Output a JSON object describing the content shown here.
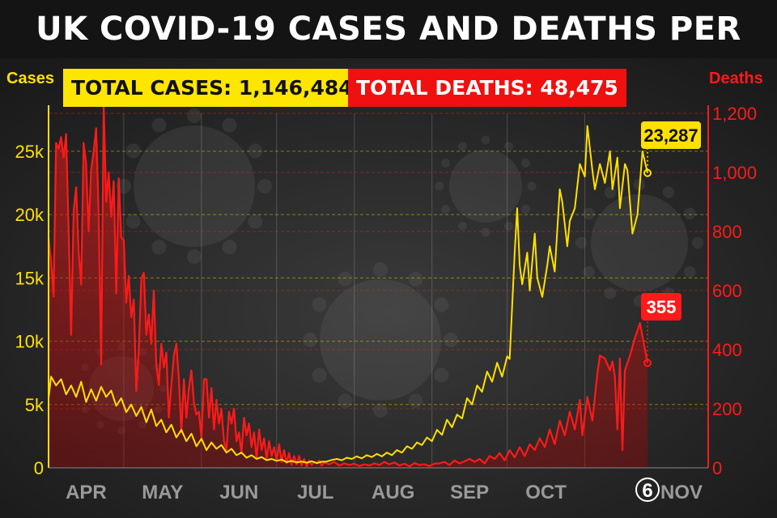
{
  "title": "UK COVID-19 CASES AND DEATHS PER DAY",
  "badges": {
    "cases": "TOTAL CASES: 1,146,484",
    "deaths": "TOTAL DEATHS: 48,475"
  },
  "colors": {
    "cases": "#ffe000",
    "deaths": "#ff1a1a",
    "background": "#1c1c1c",
    "title_bg": "#141414"
  },
  "chart_data": {
    "type": "line",
    "title": "UK COVID-19 CASES AND DEATHS PER DAY",
    "x_ticks": [
      "APR",
      "MAY",
      "JUN",
      "JUL",
      "AUG",
      "SEP",
      "OCT",
      "6 NOV"
    ],
    "y_left": {
      "label": "Cases",
      "range": [
        0,
        28000
      ],
      "ticks": [
        0,
        5000,
        10000,
        15000,
        20000,
        25000
      ],
      "tick_labels": [
        "0",
        "5k",
        "10k",
        "15k",
        "20k",
        "25k"
      ]
    },
    "y_right": {
      "label": "Deaths",
      "range": [
        0,
        1200
      ],
      "ticks": [
        0,
        200,
        400,
        600,
        800,
        1000,
        1200
      ],
      "tick_labels": [
        "0",
        "200",
        "400",
        "600",
        "800",
        "1,000",
        "1,200"
      ]
    },
    "grid": true,
    "series": [
      {
        "name": "Cases",
        "axis": "left",
        "style": "line",
        "last_label": "23,287",
        "points": [
          [
            0,
            5500
          ],
          [
            1,
            7200
          ],
          [
            3,
            6500
          ],
          [
            5,
            7000
          ],
          [
            7,
            5800
          ],
          [
            9,
            6500
          ],
          [
            11,
            5600
          ],
          [
            13,
            6800
          ],
          [
            15,
            5200
          ],
          [
            17,
            6200
          ],
          [
            19,
            5300
          ],
          [
            21,
            6400
          ],
          [
            23,
            5600
          ],
          [
            25,
            6100
          ],
          [
            27,
            4900
          ],
          [
            29,
            5500
          ],
          [
            31,
            4400
          ],
          [
            33,
            5000
          ],
          [
            35,
            4100
          ],
          [
            37,
            4800
          ],
          [
            39,
            3600
          ],
          [
            41,
            4600
          ],
          [
            43,
            3300
          ],
          [
            45,
            3800
          ],
          [
            47,
            2800
          ],
          [
            49,
            3400
          ],
          [
            51,
            2400
          ],
          [
            53,
            3000
          ],
          [
            55,
            2100
          ],
          [
            57,
            2700
          ],
          [
            59,
            1700
          ],
          [
            61,
            2300
          ],
          [
            63,
            1400
          ],
          [
            65,
            2000
          ],
          [
            67,
            1500
          ],
          [
            69,
            1800
          ],
          [
            71,
            1200
          ],
          [
            73,
            1500
          ],
          [
            75,
            1000
          ],
          [
            77,
            1200
          ],
          [
            79,
            800
          ],
          [
            81,
            1000
          ],
          [
            83,
            700
          ],
          [
            85,
            850
          ],
          [
            87,
            600
          ],
          [
            89,
            700
          ],
          [
            91,
            550
          ],
          [
            93,
            650
          ],
          [
            95,
            450
          ],
          [
            97,
            550
          ],
          [
            99,
            420
          ],
          [
            101,
            500
          ],
          [
            103,
            400
          ],
          [
            105,
            520
          ],
          [
            107,
            380
          ],
          [
            109,
            480
          ],
          [
            111,
            500
          ],
          [
            113,
            620
          ],
          [
            115,
            700
          ],
          [
            117,
            600
          ],
          [
            119,
            800
          ],
          [
            121,
            700
          ],
          [
            123,
            900
          ],
          [
            125,
            750
          ],
          [
            127,
            1000
          ],
          [
            129,
            850
          ],
          [
            131,
            1100
          ],
          [
            133,
            900
          ],
          [
            135,
            1200
          ],
          [
            137,
            1000
          ],
          [
            139,
            1400
          ],
          [
            141,
            1200
          ],
          [
            143,
            1700
          ],
          [
            145,
            1500
          ],
          [
            147,
            2000
          ],
          [
            149,
            1800
          ],
          [
            151,
            2400
          ],
          [
            153,
            2100
          ],
          [
            155,
            3000
          ],
          [
            157,
            2600
          ],
          [
            159,
            3800
          ],
          [
            161,
            3200
          ],
          [
            163,
            4200
          ],
          [
            165,
            3900
          ],
          [
            167,
            5500
          ],
          [
            169,
            5000
          ],
          [
            171,
            6500
          ],
          [
            173,
            6000
          ],
          [
            175,
            7600
          ],
          [
            177,
            6800
          ],
          [
            179,
            8300
          ],
          [
            181,
            7200
          ],
          [
            183,
            8800
          ],
          [
            184,
            8600
          ],
          [
            186,
            17000
          ],
          [
            187,
            20500
          ],
          [
            188,
            16000
          ],
          [
            189,
            14500
          ],
          [
            191,
            17000
          ],
          [
            192,
            14000
          ],
          [
            194,
            18500
          ],
          [
            195,
            15000
          ],
          [
            197,
            13500
          ],
          [
            199,
            16000
          ],
          [
            200,
            17500
          ],
          [
            202,
            15500
          ],
          [
            204,
            22000
          ],
          [
            205,
            21000
          ],
          [
            207,
            17500
          ],
          [
            208,
            19500
          ],
          [
            210,
            20500
          ],
          [
            212,
            24000
          ],
          [
            214,
            23000
          ],
          [
            215,
            27000
          ],
          [
            217,
            23500
          ],
          [
            218,
            22000
          ],
          [
            220,
            24000
          ],
          [
            222,
            22500
          ],
          [
            224,
            25000
          ],
          [
            225,
            22000
          ],
          [
            227,
            24500
          ],
          [
            228,
            20500
          ],
          [
            230,
            24000
          ],
          [
            231,
            23500
          ],
          [
            233,
            18500
          ],
          [
            235,
            20000
          ],
          [
            237,
            25000
          ],
          [
            239,
            23287
          ]
        ]
      },
      {
        "name": "Deaths",
        "axis": "right",
        "style": "area",
        "last_label": "355",
        "points": [
          [
            0,
            780
          ],
          [
            1,
            700
          ],
          [
            2,
            580
          ],
          [
            3,
            1100
          ],
          [
            4,
            1080
          ],
          [
            5,
            1120
          ],
          [
            6,
            1050
          ],
          [
            7,
            1130
          ],
          [
            8,
            800
          ],
          [
            9,
            450
          ],
          [
            10,
            870
          ],
          [
            11,
            950
          ],
          [
            12,
            730
          ],
          [
            13,
            620
          ],
          [
            14,
            1100
          ],
          [
            15,
            1030
          ],
          [
            16,
            800
          ],
          [
            17,
            1010
          ],
          [
            18,
            1070
          ],
          [
            19,
            1150
          ],
          [
            20,
            860
          ],
          [
            21,
            350
          ],
          [
            22,
            1230
          ],
          [
            23,
            900
          ],
          [
            24,
            1000
          ],
          [
            25,
            850
          ],
          [
            26,
            970
          ],
          [
            27,
            590
          ],
          [
            28,
            980
          ],
          [
            29,
            780
          ],
          [
            30,
            770
          ],
          [
            31,
            560
          ],
          [
            32,
            650
          ],
          [
            33,
            510
          ],
          [
            34,
            570
          ],
          [
            35,
            260
          ],
          [
            36,
            400
          ],
          [
            37,
            640
          ],
          [
            38,
            660
          ],
          [
            39,
            450
          ],
          [
            40,
            520
          ],
          [
            41,
            420
          ],
          [
            42,
            600
          ],
          [
            43,
            350
          ],
          [
            44,
            280
          ],
          [
            45,
            420
          ],
          [
            46,
            340
          ],
          [
            47,
            390
          ],
          [
            48,
            170
          ],
          [
            49,
            280
          ],
          [
            50,
            380
          ],
          [
            51,
            420
          ],
          [
            52,
            300
          ],
          [
            53,
            120
          ],
          [
            54,
            300
          ],
          [
            55,
            170
          ],
          [
            56,
            270
          ],
          [
            57,
            330
          ],
          [
            58,
            220
          ],
          [
            59,
            180
          ],
          [
            60,
            190
          ],
          [
            61,
            100
          ],
          [
            62,
            300
          ],
          [
            63,
            300
          ],
          [
            64,
            170
          ],
          [
            65,
            270
          ],
          [
            66,
            130
          ],
          [
            67,
            230
          ],
          [
            68,
            150
          ],
          [
            69,
            200
          ],
          [
            70,
            90
          ],
          [
            71,
            60
          ],
          [
            72,
            190
          ],
          [
            73,
            150
          ],
          [
            74,
            200
          ],
          [
            75,
            90
          ],
          [
            76,
            120
          ],
          [
            77,
            50
          ],
          [
            78,
            170
          ],
          [
            79,
            110
          ],
          [
            80,
            150
          ],
          [
            81,
            70
          ],
          [
            82,
            120
          ],
          [
            83,
            30
          ],
          [
            84,
            130
          ],
          [
            85,
            60
          ],
          [
            86,
            100
          ],
          [
            87,
            30
          ],
          [
            88,
            90
          ],
          [
            89,
            40
          ],
          [
            90,
            70
          ],
          [
            91,
            25
          ],
          [
            92,
            80
          ],
          [
            93,
            20
          ],
          [
            94,
            60
          ],
          [
            95,
            15
          ],
          [
            96,
            50
          ],
          [
            97,
            10
          ],
          [
            98,
            40
          ],
          [
            99,
            12
          ],
          [
            100,
            40
          ],
          [
            101,
            8
          ],
          [
            102,
            30
          ],
          [
            103,
            5
          ],
          [
            104,
            25
          ],
          [
            105,
            10
          ],
          [
            106,
            20
          ],
          [
            107,
            15
          ],
          [
            108,
            25
          ],
          [
            109,
            8
          ],
          [
            110,
            18
          ],
          [
            112,
            12
          ],
          [
            114,
            20
          ],
          [
            116,
            8
          ],
          [
            118,
            15
          ],
          [
            120,
            10
          ],
          [
            122,
            14
          ],
          [
            124,
            6
          ],
          [
            126,
            12
          ],
          [
            128,
            8
          ],
          [
            130,
            15
          ],
          [
            132,
            10
          ],
          [
            134,
            20
          ],
          [
            136,
            12
          ],
          [
            138,
            18
          ],
          [
            140,
            8
          ],
          [
            142,
            14
          ],
          [
            144,
            5
          ],
          [
            146,
            16
          ],
          [
            148,
            10
          ],
          [
            150,
            12
          ],
          [
            152,
            6
          ],
          [
            154,
            14
          ],
          [
            156,
            15
          ],
          [
            158,
            20
          ],
          [
            160,
            10
          ],
          [
            162,
            25
          ],
          [
            164,
            15
          ],
          [
            166,
            22
          ],
          [
            168,
            30
          ],
          [
            170,
            20
          ],
          [
            172,
            30
          ],
          [
            174,
            15
          ],
          [
            176,
            40
          ],
          [
            178,
            30
          ],
          [
            180,
            50
          ],
          [
            182,
            25
          ],
          [
            184,
            60
          ],
          [
            186,
            35
          ],
          [
            188,
            70
          ],
          [
            190,
            40
          ],
          [
            192,
            80
          ],
          [
            194,
            60
          ],
          [
            196,
            100
          ],
          [
            198,
            70
          ],
          [
            200,
            130
          ],
          [
            202,
            80
          ],
          [
            204,
            160
          ],
          [
            206,
            110
          ],
          [
            208,
            190
          ],
          [
            210,
            130
          ],
          [
            212,
            230
          ],
          [
            213,
            110
          ],
          [
            215,
            240
          ],
          [
            217,
            160
          ],
          [
            219,
            320
          ],
          [
            220,
            380
          ],
          [
            222,
            370
          ],
          [
            224,
            330
          ],
          [
            225,
            360
          ],
          [
            226,
            310
          ],
          [
            227,
            130
          ],
          [
            228,
            370
          ],
          [
            229,
            60
          ],
          [
            230,
            330
          ],
          [
            232,
            380
          ],
          [
            234,
            440
          ],
          [
            236,
            490
          ],
          [
            238,
            400
          ],
          [
            239,
            355
          ]
        ]
      }
    ]
  }
}
